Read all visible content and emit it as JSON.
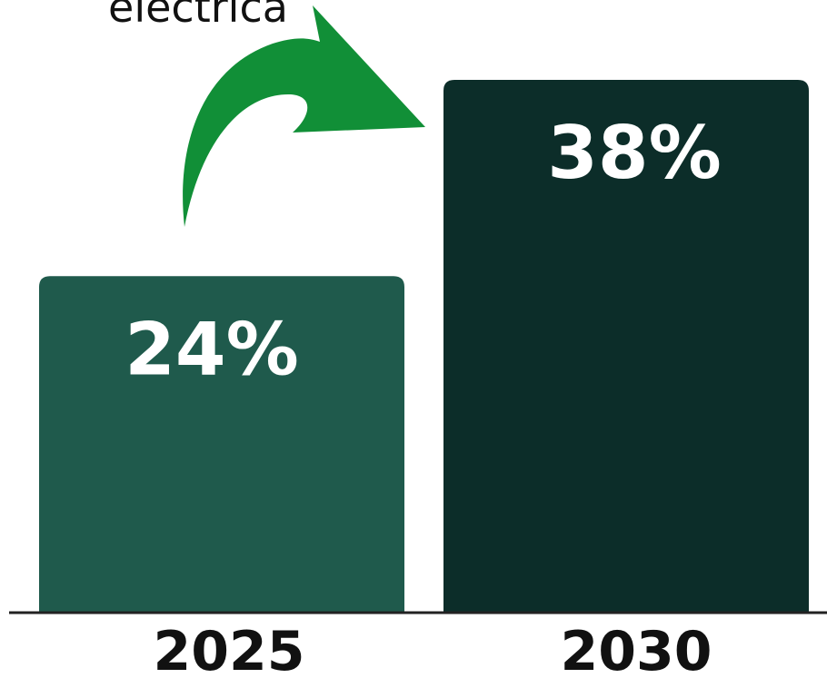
{
  "chart_data": {
    "type": "bar",
    "categories": [
      "2025",
      "2030"
    ],
    "values": [
      24,
      38
    ],
    "value_labels": [
      "24%",
      "38%"
    ],
    "unit": "%",
    "annotation": "eléctrica",
    "colors": {
      "bars": [
        "#1f5a4c",
        "#0c2d29"
      ],
      "arrow": "#118f37",
      "baseline": "#222222",
      "text": "#111111",
      "bar_label": "#ffffff"
    },
    "grid": false,
    "legend": "none"
  }
}
